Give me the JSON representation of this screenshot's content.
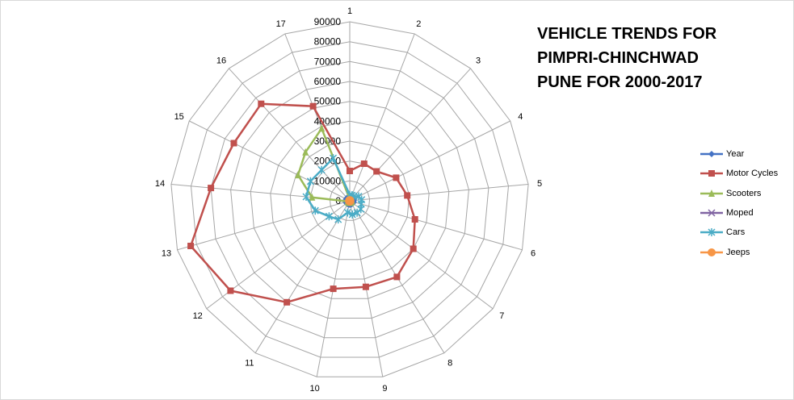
{
  "title_lines": [
    "VEHICLE TRENDS FOR",
    "PIMPRI-CHINCHWAD",
    "PUNE FOR 2000-2017"
  ],
  "chart_data": {
    "type": "radar",
    "title": "VEHICLE TRENDS FOR PIMPRI-CHINCHWAD PUNE FOR 2000-2017",
    "categories": [
      "1",
      "2",
      "3",
      "4",
      "5",
      "6",
      "7",
      "8",
      "9",
      "10",
      "11",
      "12",
      "13",
      "14",
      "15",
      "16",
      "17"
    ],
    "rlim": [
      0,
      90000
    ],
    "r_ticks": [
      0,
      10000,
      20000,
      30000,
      40000,
      50000,
      60000,
      70000,
      80000,
      90000
    ],
    "grid": true,
    "legend_position": "right",
    "series": [
      {
        "name": "Year",
        "color": "#4472C4",
        "marker": "diamond",
        "values": [
          2000,
          2001,
          2002,
          2003,
          2004,
          2005,
          2006,
          2007,
          2008,
          2009,
          2010,
          2011,
          2012,
          2013,
          2014,
          2015,
          2016
        ]
      },
      {
        "name": "Motor Cycles",
        "color": "#C0504D",
        "marker": "square",
        "values": [
          15000,
          20000,
          20000,
          26000,
          29000,
          34000,
          40000,
          45000,
          44000,
          45000,
          60000,
          75000,
          83000,
          70000,
          65000,
          66000,
          51000
        ]
      },
      {
        "name": "Scooters",
        "color": "#9BBB59",
        "marker": "triangle",
        "values": [
          1000,
          1000,
          1000,
          1000,
          1000,
          1000,
          1000,
          1000,
          1000,
          1000,
          1000,
          1000,
          1000,
          19000,
          29000,
          33000,
          39000
        ]
      },
      {
        "name": "Moped",
        "color": "#8064A2",
        "marker": "x",
        "values": [
          100,
          100,
          100,
          100,
          100,
          100,
          100,
          100,
          100,
          100,
          100,
          100,
          100,
          100,
          100,
          100,
          100
        ]
      },
      {
        "name": "Cars",
        "color": "#4BACC6",
        "marker": "star",
        "values": [
          3000,
          3000,
          3000,
          5000,
          6000,
          6000,
          7000,
          7000,
          7000,
          6000,
          11000,
          13000,
          18000,
          22000,
          22000,
          21000,
          23000
        ]
      },
      {
        "name": "Jeeps",
        "color": "#F79646",
        "marker": "circle",
        "values": [
          300,
          300,
          300,
          300,
          300,
          300,
          300,
          300,
          300,
          300,
          300,
          300,
          300,
          300,
          300,
          300,
          300
        ]
      }
    ]
  }
}
